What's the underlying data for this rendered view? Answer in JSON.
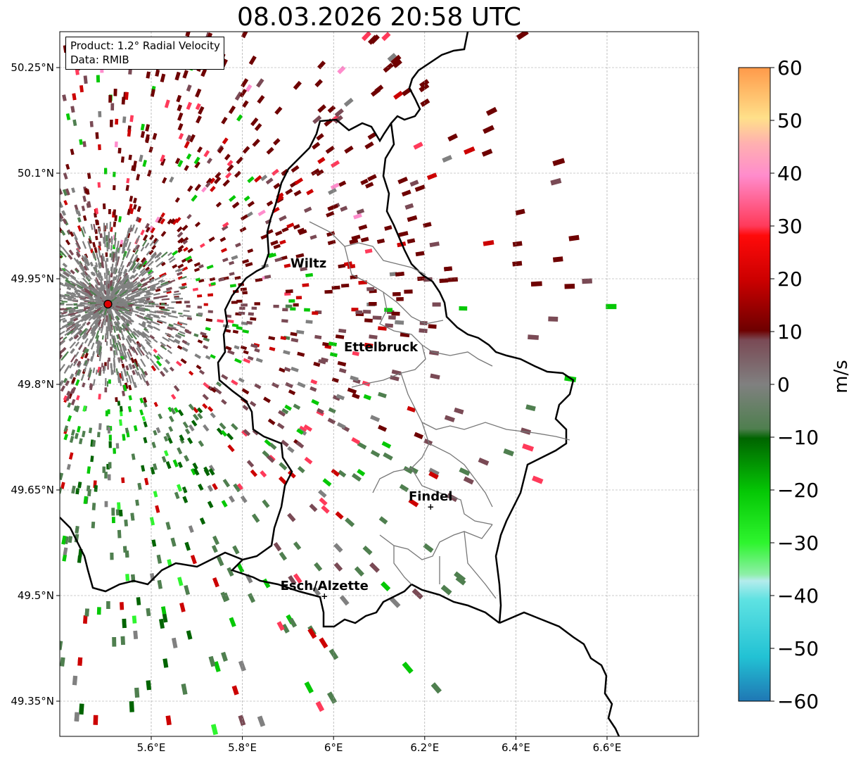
{
  "title": "08.03.2026 20:58 UTC",
  "info": {
    "product": "Product: 1.2° Radial Velocity",
    "data_source": "Data: RMIB"
  },
  "map": {
    "lon_range": [
      5.4,
      6.8
    ],
    "lat_range": [
      49.3,
      50.3
    ],
    "radar_site": {
      "lon": 5.505,
      "lat": 49.914
    },
    "lon_ticks": [
      {
        "value": 5.6,
        "label": "5.6°E"
      },
      {
        "value": 5.8,
        "label": "5.8°E"
      },
      {
        "value": 6.0,
        "label": "6°E"
      },
      {
        "value": 6.2,
        "label": "6.2°E"
      },
      {
        "value": 6.4,
        "label": "6.4°E"
      },
      {
        "value": 6.6,
        "label": "6.6°E"
      }
    ],
    "lat_ticks": [
      {
        "value": 49.35,
        "label": "49.35°N"
      },
      {
        "value": 49.5,
        "label": "49.5°N"
      },
      {
        "value": 49.65,
        "label": "49.65°N"
      },
      {
        "value": 49.8,
        "label": "49.8°N"
      },
      {
        "value": 49.95,
        "label": "49.95°N"
      },
      {
        "value": 50.1,
        "label": "50.1°N"
      },
      {
        "value": 50.25,
        "label": "50.25°N"
      }
    ],
    "cities": [
      {
        "name": "Wiltz",
        "lon": 5.945,
        "lat": 49.966,
        "marker": false
      },
      {
        "name": "Ettelbruck",
        "lon": 6.104,
        "lat": 49.847,
        "marker": false
      },
      {
        "name": "Findel",
        "lon": 6.213,
        "lat": 49.627,
        "marker": true
      },
      {
        "name": "Esch/Alzette",
        "lon": 5.98,
        "lat": 49.5,
        "marker": true
      }
    ],
    "grid": true
  },
  "colorbar": {
    "unit": "m/s",
    "min": -60,
    "max": 60,
    "tick_labels": [
      "60",
      "50",
      "40",
      "30",
      "20",
      "10",
      "0",
      "−10",
      "−20",
      "−30",
      "−40",
      "−50",
      "−60"
    ],
    "colors": {
      "neg60": "#1f77b4",
      "neg50": "#22c2d4",
      "neg40": "#b4ecec",
      "neg35": "#8eefa8",
      "neg30": "#2ef52e",
      "neg20": "#05c805",
      "neg10": "#006400",
      "neg5": "#4f7f4f",
      "zero": "#808080",
      "pos5": "#7a4a55",
      "pos10": "#6e0000",
      "pos20": "#cc0000",
      "pos30": "#ff3a5a",
      "pos40": "#ff8ccc",
      "pos50": "#ffe08a",
      "pos60": "#ff9a4a"
    }
  }
}
